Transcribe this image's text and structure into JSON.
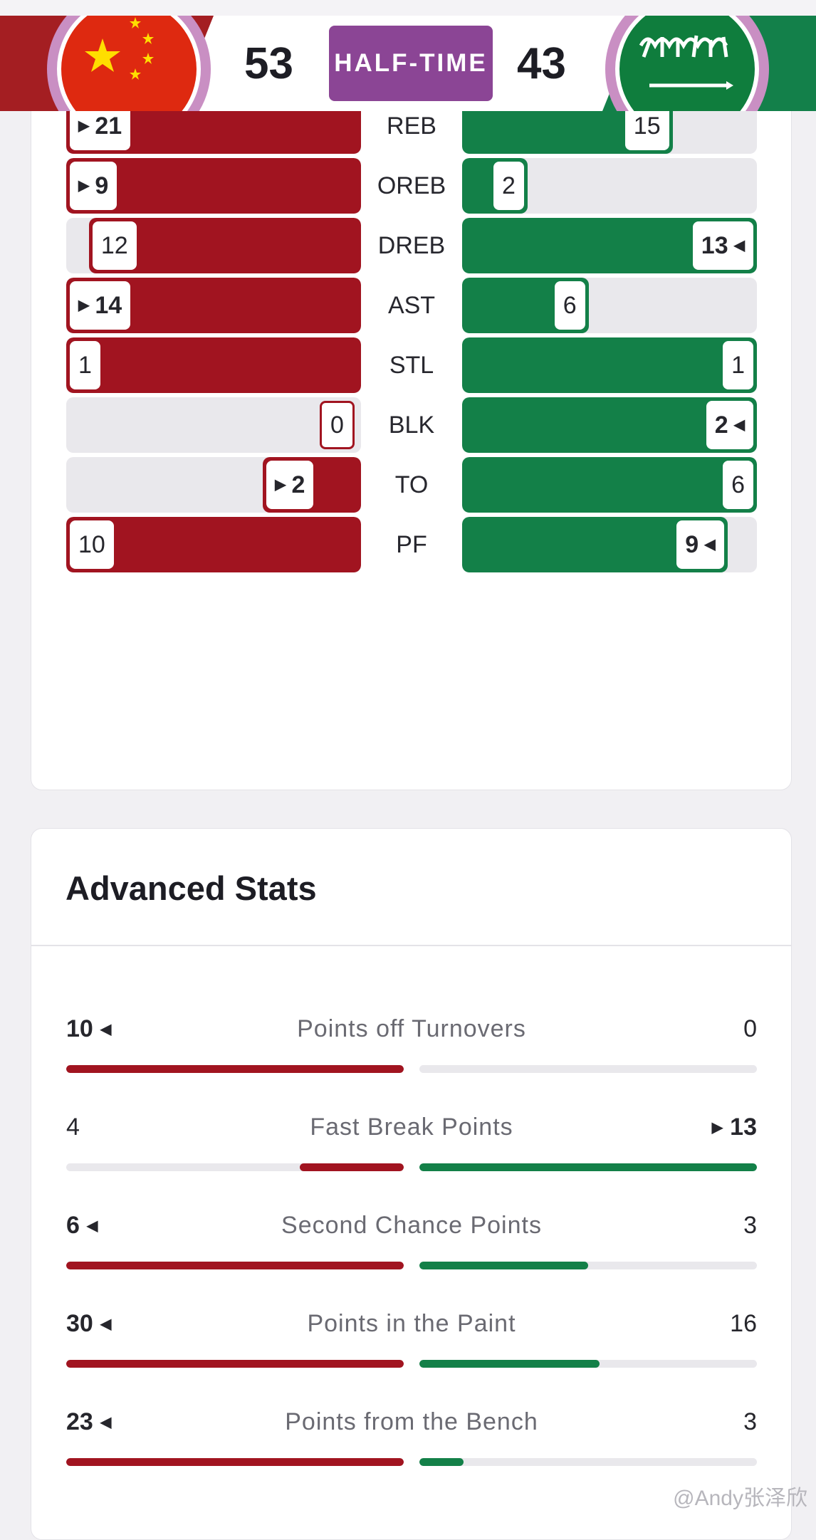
{
  "header": {
    "home_score": "53",
    "away_score": "43",
    "status": "HALF-TIME",
    "home_flag": "china-flag",
    "away_flag": "saudi-arabia-flag"
  },
  "colors": {
    "home": "#a11420",
    "away": "#138048",
    "badge": "#8b4595"
  },
  "team_stats": [
    {
      "label": "REB",
      "home": "21",
      "away": "15",
      "home_frac": 1.0,
      "away_frac": 0.714,
      "leader": "home"
    },
    {
      "label": "OREB",
      "home": "9",
      "away": "2",
      "home_frac": 1.0,
      "away_frac": 0.222,
      "leader": "home"
    },
    {
      "label": "DREB",
      "home": "12",
      "away": "13",
      "home_frac": 0.923,
      "away_frac": 1.0,
      "leader": "away"
    },
    {
      "label": "AST",
      "home": "14",
      "away": "6",
      "home_frac": 1.0,
      "away_frac": 0.429,
      "leader": "home"
    },
    {
      "label": "STL",
      "home": "1",
      "away": "1",
      "home_frac": 1.0,
      "away_frac": 1.0,
      "leader": "none"
    },
    {
      "label": "BLK",
      "home": "0",
      "away": "2",
      "home_frac": 0.0,
      "away_frac": 1.0,
      "leader": "away"
    },
    {
      "label": "TO",
      "home": "2",
      "away": "6",
      "home_frac": 0.333,
      "away_frac": 1.0,
      "leader": "home"
    },
    {
      "label": "PF",
      "home": "10",
      "away": "9",
      "home_frac": 1.0,
      "away_frac": 0.9,
      "leader": "away"
    }
  ],
  "advanced": {
    "title": "Advanced Stats",
    "rows": [
      {
        "label": "Points off Turnovers",
        "home": "10",
        "away": "0",
        "home_frac": 1.0,
        "away_frac": 0.0,
        "leader": "home"
      },
      {
        "label": "Fast Break Points",
        "home": "4",
        "away": "13",
        "home_frac": 0.308,
        "away_frac": 1.0,
        "leader": "away"
      },
      {
        "label": "Second Chance Points",
        "home": "6",
        "away": "3",
        "home_frac": 1.0,
        "away_frac": 0.5,
        "leader": "home"
      },
      {
        "label": "Points in the Paint",
        "home": "30",
        "away": "16",
        "home_frac": 1.0,
        "away_frac": 0.533,
        "leader": "home"
      },
      {
        "label": "Points from the Bench",
        "home": "23",
        "away": "3",
        "home_frac": 1.0,
        "away_frac": 0.13,
        "leader": "home"
      }
    ]
  },
  "watermark": "@Andy张泽欣"
}
